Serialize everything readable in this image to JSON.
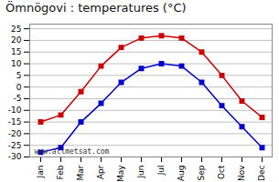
{
  "chart_data": {
    "type": "line",
    "title": "Ömnögovi : temperatures (°C)",
    "categories": [
      "Jan",
      "Feb",
      "Mar",
      "Apr",
      "May",
      "Jun",
      "Jul",
      "Aug",
      "Sep",
      "Oct",
      "Nov",
      "Dec"
    ],
    "series": [
      {
        "color": "#cc0000",
        "marker": "square",
        "line_style": "solid",
        "values": [
          -15,
          -12,
          -2,
          9,
          17,
          21,
          22,
          21,
          15,
          5,
          -6,
          -13
        ]
      },
      {
        "color": "#0000cc",
        "marker": "square",
        "line_style": "solid",
        "values": [
          -28,
          -26,
          -15,
          -7,
          2,
          8,
          10,
          9,
          2,
          -8,
          -17,
          -26
        ]
      }
    ],
    "ylim": [
      -30,
      27
    ],
    "yticks": [
      -30,
      -25,
      -20,
      -15,
      -10,
      -5,
      0,
      5,
      10,
      15,
      20,
      25
    ],
    "grid": true,
    "annotations": [
      "www.allmetsat.com"
    ]
  }
}
